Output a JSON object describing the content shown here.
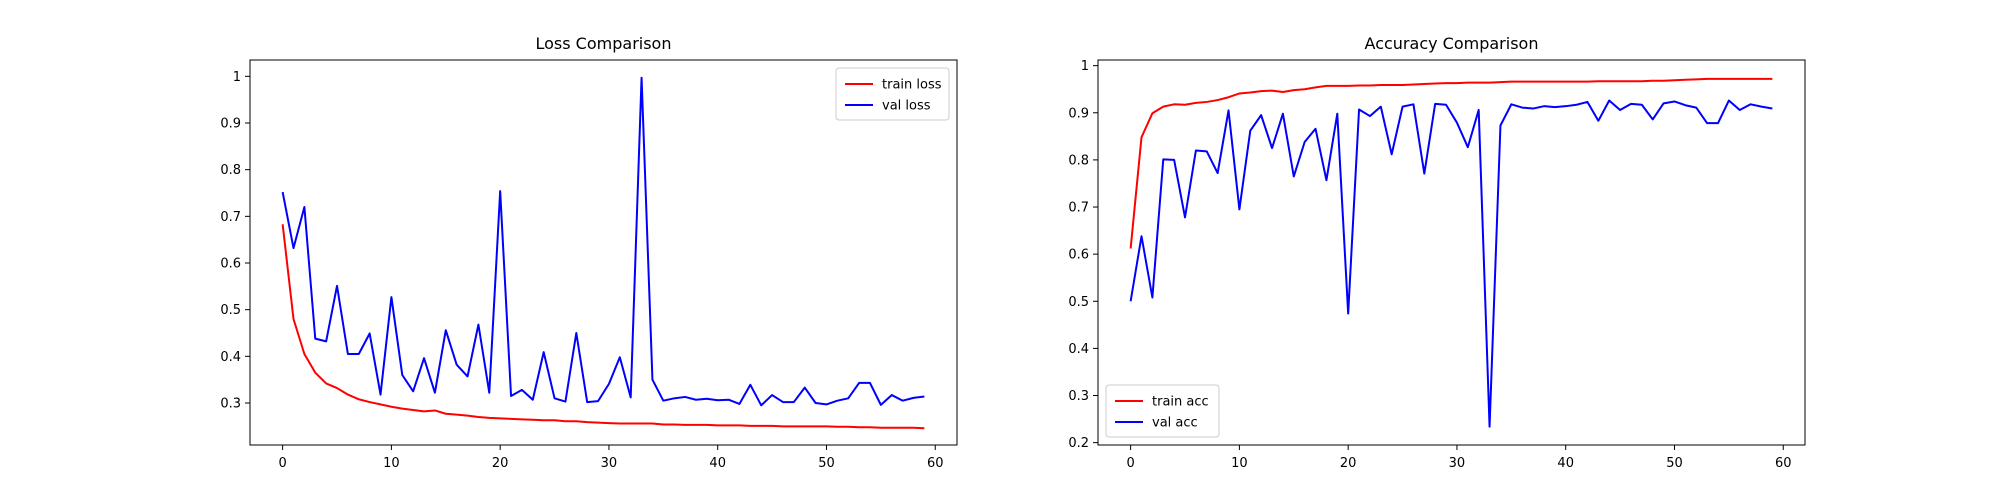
{
  "chart_data": [
    {
      "type": "line",
      "title": "Loss Comparison",
      "xlabel": "",
      "ylabel": "",
      "xlim": [
        -3,
        62
      ],
      "ylim": [
        0.21,
        1.035
      ],
      "xticks": [
        0,
        10,
        20,
        30,
        40,
        50,
        60
      ],
      "yticks": [
        0.3,
        0.4,
        0.5,
        0.6,
        0.7,
        0.8,
        0.9,
        1.0
      ],
      "grid": false,
      "legend_position": "top-right",
      "series": [
        {
          "name": "train loss",
          "color": "#ff0000",
          "values": [
            0.683,
            0.48,
            0.405,
            0.365,
            0.342,
            0.332,
            0.318,
            0.308,
            0.302,
            0.297,
            0.292,
            0.288,
            0.285,
            0.282,
            0.284,
            0.277,
            0.275,
            0.273,
            0.27,
            0.268,
            0.267,
            0.266,
            0.265,
            0.264,
            0.263,
            0.263,
            0.261,
            0.261,
            0.259,
            0.258,
            0.257,
            0.256,
            0.256,
            0.256,
            0.256,
            0.254,
            0.254,
            0.253,
            0.253,
            0.253,
            0.252,
            0.252,
            0.252,
            0.251,
            0.251,
            0.251,
            0.25,
            0.25,
            0.25,
            0.25,
            0.25,
            0.249,
            0.249,
            0.248,
            0.248,
            0.247,
            0.247,
            0.247,
            0.247,
            0.246
          ]
        },
        {
          "name": "val loss",
          "color": "#0000ff",
          "values": [
            0.752,
            0.632,
            0.72,
            0.438,
            0.432,
            0.551,
            0.405,
            0.405,
            0.449,
            0.318,
            0.527,
            0.36,
            0.325,
            0.396,
            0.322,
            0.456,
            0.382,
            0.357,
            0.468,
            0.322,
            0.754,
            0.315,
            0.328,
            0.307,
            0.409,
            0.31,
            0.303,
            0.45,
            0.302,
            0.304,
            0.341,
            0.398,
            0.312,
            0.997,
            0.35,
            0.305,
            0.31,
            0.313,
            0.307,
            0.309,
            0.306,
            0.307,
            0.298,
            0.339,
            0.295,
            0.317,
            0.302,
            0.302,
            0.333,
            0.3,
            0.297,
            0.305,
            0.31,
            0.343,
            0.343,
            0.296,
            0.317,
            0.305,
            0.311,
            0.314
          ]
        }
      ]
    },
    {
      "type": "line",
      "title": "Accuracy Comparison",
      "xlabel": "",
      "ylabel": "",
      "xlim": [
        -3,
        62
      ],
      "ylim": [
        0.195,
        1.012
      ],
      "xticks": [
        0,
        10,
        20,
        30,
        40,
        50,
        60
      ],
      "yticks": [
        0.2,
        0.3,
        0.4,
        0.5,
        0.6,
        0.7,
        0.8,
        0.9,
        1.0
      ],
      "grid": false,
      "legend_position": "bottom-left",
      "series": [
        {
          "name": "train acc",
          "color": "#ff0000",
          "values": [
            0.612,
            0.848,
            0.899,
            0.913,
            0.918,
            0.917,
            0.921,
            0.923,
            0.927,
            0.933,
            0.941,
            0.943,
            0.946,
            0.947,
            0.944,
            0.948,
            0.95,
            0.954,
            0.957,
            0.957,
            0.957,
            0.958,
            0.958,
            0.959,
            0.959,
            0.959,
            0.96,
            0.961,
            0.962,
            0.963,
            0.963,
            0.964,
            0.964,
            0.964,
            0.965,
            0.966,
            0.966,
            0.966,
            0.966,
            0.966,
            0.966,
            0.966,
            0.966,
            0.967,
            0.967,
            0.967,
            0.967,
            0.967,
            0.968,
            0.968,
            0.969,
            0.97,
            0.971,
            0.972,
            0.972,
            0.972,
            0.972,
            0.972,
            0.972,
            0.972
          ]
        },
        {
          "name": "val acc",
          "color": "#0000ff",
          "values": [
            0.5,
            0.638,
            0.508,
            0.801,
            0.8,
            0.678,
            0.82,
            0.818,
            0.772,
            0.905,
            0.695,
            0.862,
            0.895,
            0.825,
            0.898,
            0.765,
            0.838,
            0.866,
            0.757,
            0.898,
            0.474,
            0.907,
            0.893,
            0.913,
            0.812,
            0.913,
            0.918,
            0.771,
            0.919,
            0.917,
            0.879,
            0.827,
            0.906,
            0.234,
            0.873,
            0.918,
            0.911,
            0.909,
            0.914,
            0.912,
            0.914,
            0.917,
            0.923,
            0.883,
            0.926,
            0.906,
            0.919,
            0.917,
            0.886,
            0.92,
            0.924,
            0.916,
            0.911,
            0.878,
            0.878,
            0.926,
            0.906,
            0.918,
            0.913,
            0.909
          ]
        }
      ]
    }
  ]
}
